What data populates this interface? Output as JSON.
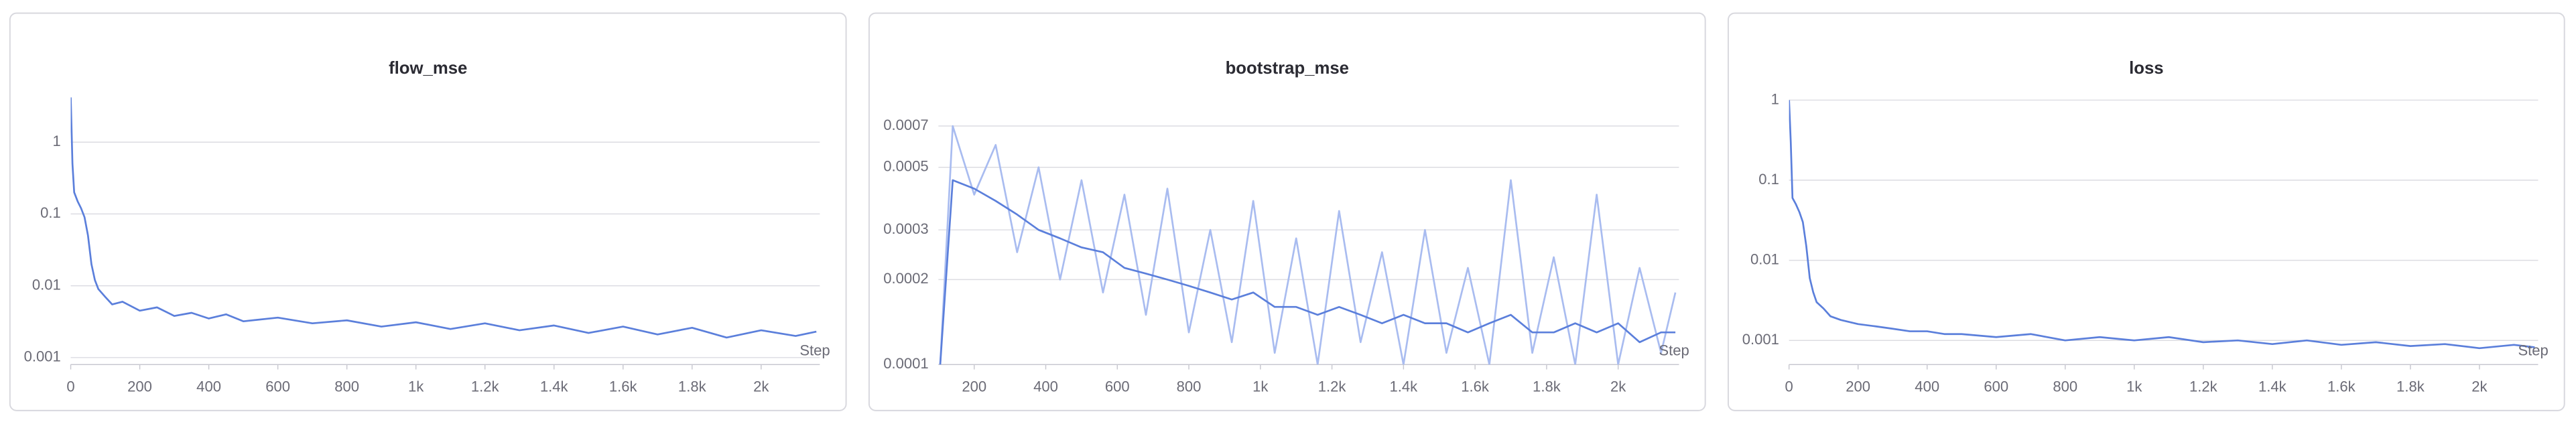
{
  "chart_data": [
    {
      "type": "line",
      "title": "flow_mse",
      "xlabel": "Step",
      "log_y": true,
      "grid": true,
      "xlim": [
        0,
        2170
      ],
      "ylim": [
        0.0008,
        4.5
      ],
      "xticks": [
        0,
        200,
        400,
        600,
        800,
        {
          "value": 1000,
          "label": "1k"
        },
        {
          "value": 1200,
          "label": "1.2k"
        },
        {
          "value": 1400,
          "label": "1.4k"
        },
        {
          "value": 1600,
          "label": "1.6k"
        },
        {
          "value": 1800,
          "label": "1.8k"
        },
        {
          "value": 2000,
          "label": "2k"
        }
      ],
      "yticks": [
        0.001,
        0.01,
        0.1,
        1
      ],
      "x": [
        0,
        5,
        10,
        20,
        30,
        40,
        50,
        60,
        70,
        80,
        100,
        120,
        150,
        200,
        250,
        300,
        350,
        400,
        450,
        500,
        600,
        700,
        800,
        900,
        1000,
        1100,
        1200,
        1300,
        1400,
        1500,
        1600,
        1700,
        1800,
        1900,
        2000,
        2100,
        2160
      ],
      "series": [
        {
          "color": "#5b7fdb",
          "values": [
            4.2,
            0.5,
            0.2,
            0.15,
            0.12,
            0.09,
            0.05,
            0.02,
            0.012,
            0.009,
            0.007,
            0.0055,
            0.006,
            0.0045,
            0.005,
            0.0038,
            0.0042,
            0.0035,
            0.004,
            0.0032,
            0.0036,
            0.003,
            0.0033,
            0.0027,
            0.0031,
            0.0025,
            0.003,
            0.0024,
            0.0028,
            0.0022,
            0.0027,
            0.0021,
            0.0026,
            0.0019,
            0.0024,
            0.002,
            0.0023
          ]
        }
      ]
    },
    {
      "type": "line",
      "title": "bootstrap_mse",
      "xlabel": "Step",
      "log_y": true,
      "grid": true,
      "xlim": [
        100,
        2170
      ],
      "ylim": [
        0.0001,
        0.0009
      ],
      "xticks": [
        200,
        400,
        600,
        800,
        {
          "value": 1000,
          "label": "1k"
        },
        {
          "value": 1200,
          "label": "1.2k"
        },
        {
          "value": 1400,
          "label": "1.4k"
        },
        {
          "value": 1600,
          "label": "1.6k"
        },
        {
          "value": 1800,
          "label": "1.8k"
        },
        {
          "value": 2000,
          "label": "2k"
        }
      ],
      "yticks": [
        0.0001,
        0.0002,
        0.0003,
        0.0005,
        0.0007
      ],
      "x": [
        105,
        140,
        200,
        260,
        320,
        380,
        440,
        500,
        560,
        620,
        680,
        740,
        800,
        860,
        920,
        980,
        1040,
        1100,
        1160,
        1220,
        1280,
        1340,
        1400,
        1460,
        1520,
        1580,
        1640,
        1700,
        1760,
        1820,
        1880,
        1940,
        2000,
        2060,
        2120,
        2160
      ],
      "series": [
        {
          "color": "#a9bcf0",
          "values": [
            0.0001,
            0.0007,
            0.0004,
            0.0006,
            0.00025,
            0.0005,
            0.0002,
            0.00045,
            0.00018,
            0.0004,
            0.00015,
            0.00042,
            0.00013,
            0.0003,
            0.00012,
            0.00038,
            0.00011,
            0.00028,
            0.0001,
            0.00035,
            0.00012,
            0.00025,
            0.0001,
            0.0003,
            0.00011,
            0.00022,
            0.0001,
            0.00045,
            0.00011,
            0.00024,
            0.0001,
            0.0004,
            0.0001,
            0.00022,
            0.00011,
            0.00018
          ]
        },
        {
          "color": "#5b7fdb",
          "values": [
            0.0001,
            0.00045,
            0.00042,
            0.00038,
            0.00034,
            0.0003,
            0.00028,
            0.00026,
            0.00025,
            0.00022,
            0.00021,
            0.0002,
            0.00019,
            0.00018,
            0.00017,
            0.00018,
            0.00016,
            0.00016,
            0.00015,
            0.00016,
            0.00015,
            0.00014,
            0.00015,
            0.00014,
            0.00014,
            0.00013,
            0.00014,
            0.00015,
            0.00013,
            0.00013,
            0.00014,
            0.00013,
            0.00014,
            0.00012,
            0.00013,
            0.00013
          ]
        }
      ]
    },
    {
      "type": "line",
      "title": "loss",
      "xlabel": "Step",
      "log_y": true,
      "grid": true,
      "xlim": [
        0,
        2170
      ],
      "ylim": [
        0.0005,
        1.15
      ],
      "xticks": [
        0,
        200,
        400,
        600,
        800,
        {
          "value": 1000,
          "label": "1k"
        },
        {
          "value": 1200,
          "label": "1.2k"
        },
        {
          "value": 1400,
          "label": "1.4k"
        },
        {
          "value": 1600,
          "label": "1.6k"
        },
        {
          "value": 1800,
          "label": "1.8k"
        },
        {
          "value": 2000,
          "label": "2k"
        }
      ],
      "yticks": [
        0.001,
        0.01,
        0.1,
        1
      ],
      "x": [
        0,
        5,
        10,
        20,
        30,
        40,
        50,
        60,
        70,
        80,
        100,
        120,
        150,
        200,
        250,
        300,
        350,
        400,
        450,
        500,
        600,
        700,
        800,
        900,
        1000,
        1100,
        1200,
        1300,
        1400,
        1500,
        1600,
        1700,
        1800,
        1900,
        2000,
        2100,
        2160
      ],
      "series": [
        {
          "color": "#5b7fdb",
          "values": [
            1.0,
            0.3,
            0.06,
            0.05,
            0.04,
            0.03,
            0.015,
            0.006,
            0.004,
            0.003,
            0.0025,
            0.002,
            0.0018,
            0.0016,
            0.0015,
            0.0014,
            0.0013,
            0.0013,
            0.0012,
            0.0012,
            0.0011,
            0.0012,
            0.001,
            0.0011,
            0.001,
            0.0011,
            0.00095,
            0.001,
            0.0009,
            0.001,
            0.00088,
            0.00095,
            0.00085,
            0.0009,
            0.0008,
            0.00088,
            0.00082
          ]
        }
      ]
    }
  ]
}
